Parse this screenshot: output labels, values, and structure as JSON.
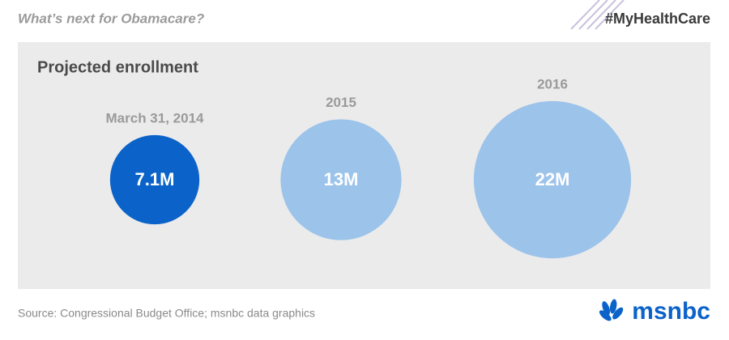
{
  "header": {
    "title": "What’s next for Obamacare?",
    "hashtag": "#MyHealthCare"
  },
  "chart_data": {
    "type": "bubble",
    "title": "Projected enrollment",
    "categories": [
      "March 31, 2014",
      "2015",
      "2016"
    ],
    "values": [
      7.1,
      13,
      22
    ],
    "value_labels": [
      "7.1M",
      "13M",
      "22M"
    ],
    "colors": [
      "#0b63c9",
      "#9cc3ea",
      "#9cc3ea"
    ]
  },
  "footer": {
    "source": "Source: Congressional Budget Office; msnbc data graphics",
    "logo": "msnbc"
  }
}
